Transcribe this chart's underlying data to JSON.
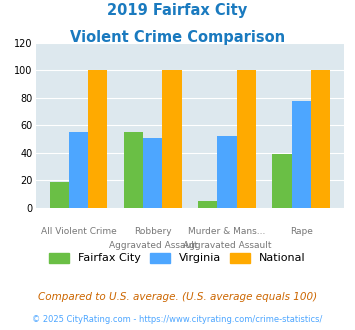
{
  "title_line1": "2019 Fairfax City",
  "title_line2": "Violent Crime Comparison",
  "title_color": "#1a7abf",
  "x_labels_row1": [
    "",
    "Robbery",
    "Murder & Mans...",
    ""
  ],
  "x_labels_row2": [
    "All Violent Crime",
    "Aggravated Assault",
    "Aggravated Assault",
    "Rape"
  ],
  "fairfax_city": [
    19,
    55,
    5,
    39
  ],
  "virginia": [
    55,
    51,
    52,
    78
  ],
  "national": [
    100,
    100,
    100,
    100
  ],
  "color_fairfax": "#6abf45",
  "color_virginia": "#4da6ff",
  "color_national": "#ffaa00",
  "ylim": [
    0,
    120
  ],
  "yticks": [
    0,
    20,
    40,
    60,
    80,
    100,
    120
  ],
  "background_color": "#dde8ee",
  "legend_labels": [
    "Fairfax City",
    "Virginia",
    "National"
  ],
  "footnote1": "Compared to U.S. average. (U.S. average equals 100)",
  "footnote2": "© 2025 CityRating.com - https://www.cityrating.com/crime-statistics/",
  "footnote1_color": "#cc6600",
  "footnote2_color": "#4da6ff"
}
